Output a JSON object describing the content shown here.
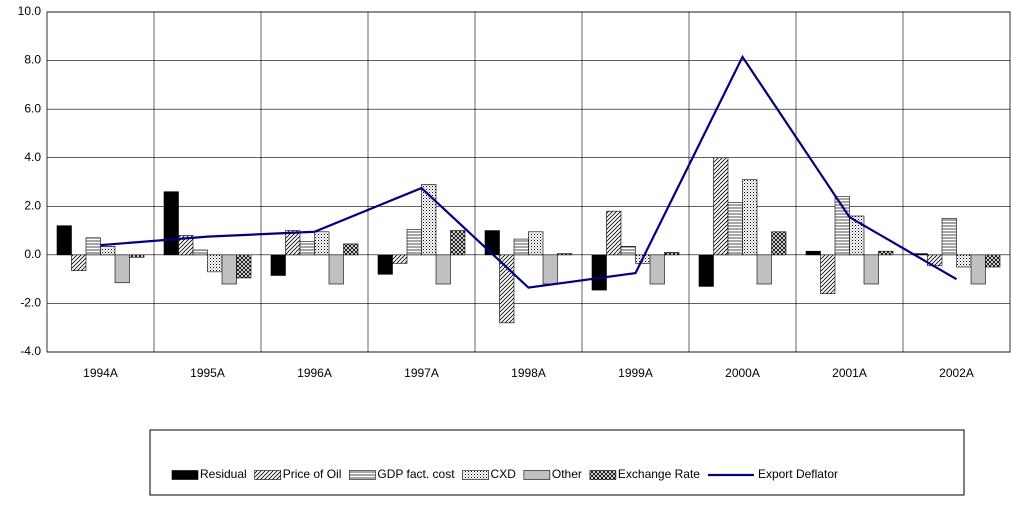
{
  "chart_data": {
    "type": "bar-line",
    "categories": [
      "1994A",
      "1995A",
      "1996A",
      "1997A",
      "1998A",
      "1999A",
      "2000A",
      "2001A",
      "2002A"
    ],
    "series": [
      {
        "name": "Residual",
        "color": "#000000",
        "pattern": "solid",
        "values": [
          1.2,
          2.6,
          -0.85,
          -0.8,
          1.0,
          -1.45,
          -1.3,
          0.15,
          0.05
        ]
      },
      {
        "name": "Price of Oil",
        "color": "#c0c0c0",
        "pattern": "diagonal",
        "values": [
          -0.65,
          0.8,
          1.0,
          -0.35,
          -2.8,
          1.8,
          4.0,
          -1.6,
          -0.45
        ]
      },
      {
        "name": "GDP fact. cost",
        "color": "#e0e0e0",
        "pattern": "horizontal",
        "values": [
          0.7,
          0.2,
          0.55,
          1.05,
          0.65,
          0.35,
          2.15,
          2.4,
          1.5
        ]
      },
      {
        "name": "CXD",
        "color": "#d0d0d0",
        "pattern": "dots",
        "values": [
          0.35,
          -0.7,
          0.95,
          2.9,
          0.95,
          -0.35,
          3.1,
          1.6,
          -0.5
        ]
      },
      {
        "name": "Other",
        "color": "#c0c0c0",
        "pattern": "solid",
        "values": [
          -1.15,
          -1.2,
          -1.2,
          -1.2,
          -1.2,
          -1.2,
          -1.2,
          -1.2,
          -1.2
        ]
      },
      {
        "name": "Exchange Rate",
        "color": "#808080",
        "pattern": "crosshatch",
        "values": [
          -0.1,
          -0.95,
          0.45,
          1.0,
          0.05,
          0.1,
          0.95,
          0.15,
          -0.5
        ]
      },
      {
        "name": "Export Deflator",
        "color": "#000080",
        "type": "line",
        "values": [
          0.4,
          0.75,
          0.95,
          2.75,
          -1.35,
          -0.75,
          8.15,
          1.55,
          -1.0
        ]
      }
    ],
    "ylim": [
      -4,
      10
    ],
    "yticks": [
      {
        "value": -4,
        "label": "-4.0"
      },
      {
        "value": -2,
        "label": "-2.0"
      },
      {
        "value": 0,
        "label": "0.0"
      },
      {
        "value": 2,
        "label": "2.0"
      },
      {
        "value": 4,
        "label": "4.0"
      },
      {
        "value": 6,
        "label": "6.0"
      },
      {
        "value": 8,
        "label": "8.0"
      },
      {
        "value": 10,
        "label": "10.0"
      }
    ],
    "grid": true
  }
}
